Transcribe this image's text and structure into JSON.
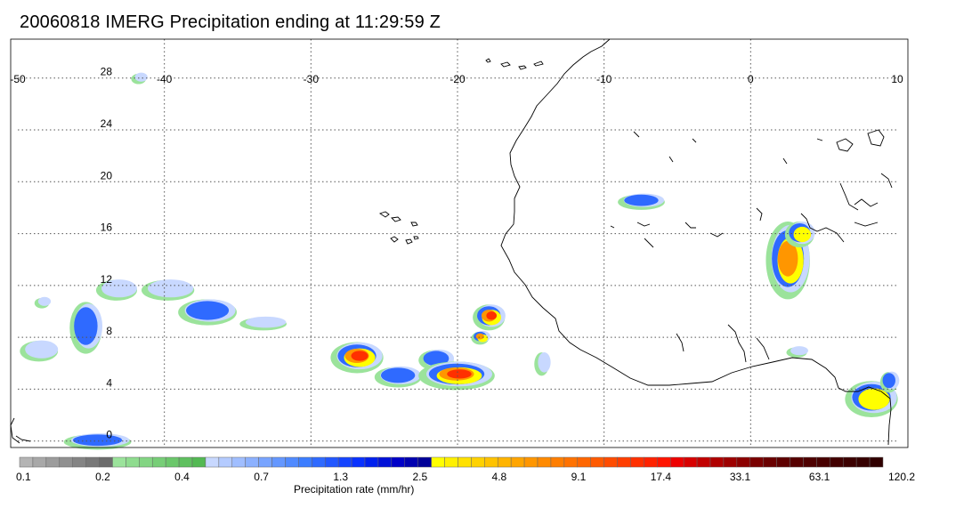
{
  "title": "20060818 IMERG Precipitation ending at 11:29:59 Z",
  "map": {
    "lon_range": [
      -50,
      10
    ],
    "lat_range": [
      -0.5,
      31
    ],
    "lon_ticks": [
      -50,
      -40,
      -30,
      -20,
      -10,
      0,
      10
    ],
    "lat_ticks": [
      0,
      4,
      8,
      12,
      16,
      20,
      24,
      28
    ],
    "lon_labels": [
      "-50",
      "-40",
      "-30",
      "-20",
      "-10",
      "0",
      "10"
    ],
    "lat_labels": [
      "0",
      "4",
      "8",
      "12",
      "16",
      "20",
      "24",
      "28"
    ],
    "grid": "dotted",
    "precip_systems": [
      {
        "lon": -44.5,
        "lat": 0.0,
        "rx": 2.3,
        "ry": 0.6,
        "peak": 0.35
      },
      {
        "lon": -41.7,
        "lat": 28.0,
        "rx": 0.5,
        "ry": 0.4,
        "peak": 0.22
      },
      {
        "lon": -48.3,
        "lat": 10.7,
        "rx": 0.5,
        "ry": 0.4,
        "peak": 0.22
      },
      {
        "lon": -45.3,
        "lat": 8.8,
        "rx": 1.1,
        "ry": 2.0,
        "peak": 0.42
      },
      {
        "lon": -48.5,
        "lat": 7.0,
        "rx": 1.3,
        "ry": 0.8,
        "peak": 0.26
      },
      {
        "lon": -43.2,
        "lat": 11.7,
        "rx": 1.4,
        "ry": 0.8,
        "peak": 0.25
      },
      {
        "lon": -39.7,
        "lat": 11.7,
        "rx": 1.8,
        "ry": 0.8,
        "peak": 0.25
      },
      {
        "lon": -37.0,
        "lat": 10.0,
        "rx": 2.0,
        "ry": 1.0,
        "peak": 0.4
      },
      {
        "lon": -33.2,
        "lat": 9.1,
        "rx": 1.6,
        "ry": 0.5,
        "peak": 0.26
      },
      {
        "lon": -26.8,
        "lat": 6.5,
        "rx": 1.8,
        "ry": 1.2,
        "peak": 0.72
      },
      {
        "lon": -24.0,
        "lat": 5.0,
        "rx": 1.6,
        "ry": 0.8,
        "peak": 0.38
      },
      {
        "lon": -21.4,
        "lat": 6.3,
        "rx": 1.2,
        "ry": 0.8,
        "peak": 0.42
      },
      {
        "lon": -20.0,
        "lat": 5.1,
        "rx": 2.6,
        "ry": 1.1,
        "peak": 0.78
      },
      {
        "lon": -17.8,
        "lat": 9.6,
        "rx": 1.1,
        "ry": 1.0,
        "peak": 0.74
      },
      {
        "lon": -18.4,
        "lat": 8.0,
        "rx": 0.6,
        "ry": 0.5,
        "peak": 0.62
      },
      {
        "lon": -14.2,
        "lat": 6.0,
        "rx": 0.5,
        "ry": 0.9,
        "peak": 0.25
      },
      {
        "lon": -7.4,
        "lat": 18.5,
        "rx": 1.6,
        "ry": 0.6,
        "peak": 0.42
      },
      {
        "lon": 2.6,
        "lat": 14.0,
        "rx": 1.5,
        "ry": 3.0,
        "peak": 0.63
      },
      {
        "lon": 3.4,
        "lat": 16.0,
        "rx": 1.0,
        "ry": 1.0,
        "peak": 0.55
      },
      {
        "lon": 3.2,
        "lat": 6.9,
        "rx": 0.7,
        "ry": 0.4,
        "peak": 0.3
      },
      {
        "lon": 8.3,
        "lat": 3.3,
        "rx": 1.8,
        "ry": 1.4,
        "peak": 0.5
      },
      {
        "lon": 9.5,
        "lat": 4.6,
        "rx": 0.6,
        "ry": 0.8,
        "peak": 0.38
      }
    ]
  },
  "colorbar": {
    "label": "Precipitation rate (mm/hr)",
    "tick_labels": [
      "0.1",
      "0.2",
      "0.4",
      "0.7",
      "1.3",
      "2.5",
      "4.8",
      "9.1",
      "17.4",
      "33.1",
      "63.1",
      "120.2"
    ],
    "colors": [
      "#b4b4b4",
      "#a8a8a8",
      "#9c9c9c",
      "#909090",
      "#848484",
      "#787878",
      "#6c6c6c",
      "#9be39b",
      "#8fdc8f",
      "#83d583",
      "#77ce77",
      "#6bc76b",
      "#5fc05f",
      "#53b953",
      "#c8d8ff",
      "#b4cbff",
      "#a0beff",
      "#8cb1ff",
      "#78a4ff",
      "#6497ff",
      "#508aff",
      "#3c7dff",
      "#2f6aff",
      "#2257ff",
      "#1544ff",
      "#0831ff",
      "#0020ee",
      "#0010d8",
      "#0000c8",
      "#0000b0",
      "#000098",
      "#ffff00",
      "#fff000",
      "#ffe100",
      "#ffd200",
      "#ffc300",
      "#ffb400",
      "#ffa500",
      "#ff9600",
      "#ff8a00",
      "#ff7e00",
      "#ff7200",
      "#ff6600",
      "#ff5a00",
      "#ff4c00",
      "#ff3e00",
      "#ff3000",
      "#ff2200",
      "#ff1400",
      "#ee0000",
      "#d80000",
      "#c20000",
      "#b00000",
      "#9e0000",
      "#8c0000",
      "#7a0000",
      "#6a0000",
      "#5e0000",
      "#560000",
      "#4e0000",
      "#480000",
      "#420000",
      "#3c0000",
      "#360000",
      "#300000"
    ]
  }
}
